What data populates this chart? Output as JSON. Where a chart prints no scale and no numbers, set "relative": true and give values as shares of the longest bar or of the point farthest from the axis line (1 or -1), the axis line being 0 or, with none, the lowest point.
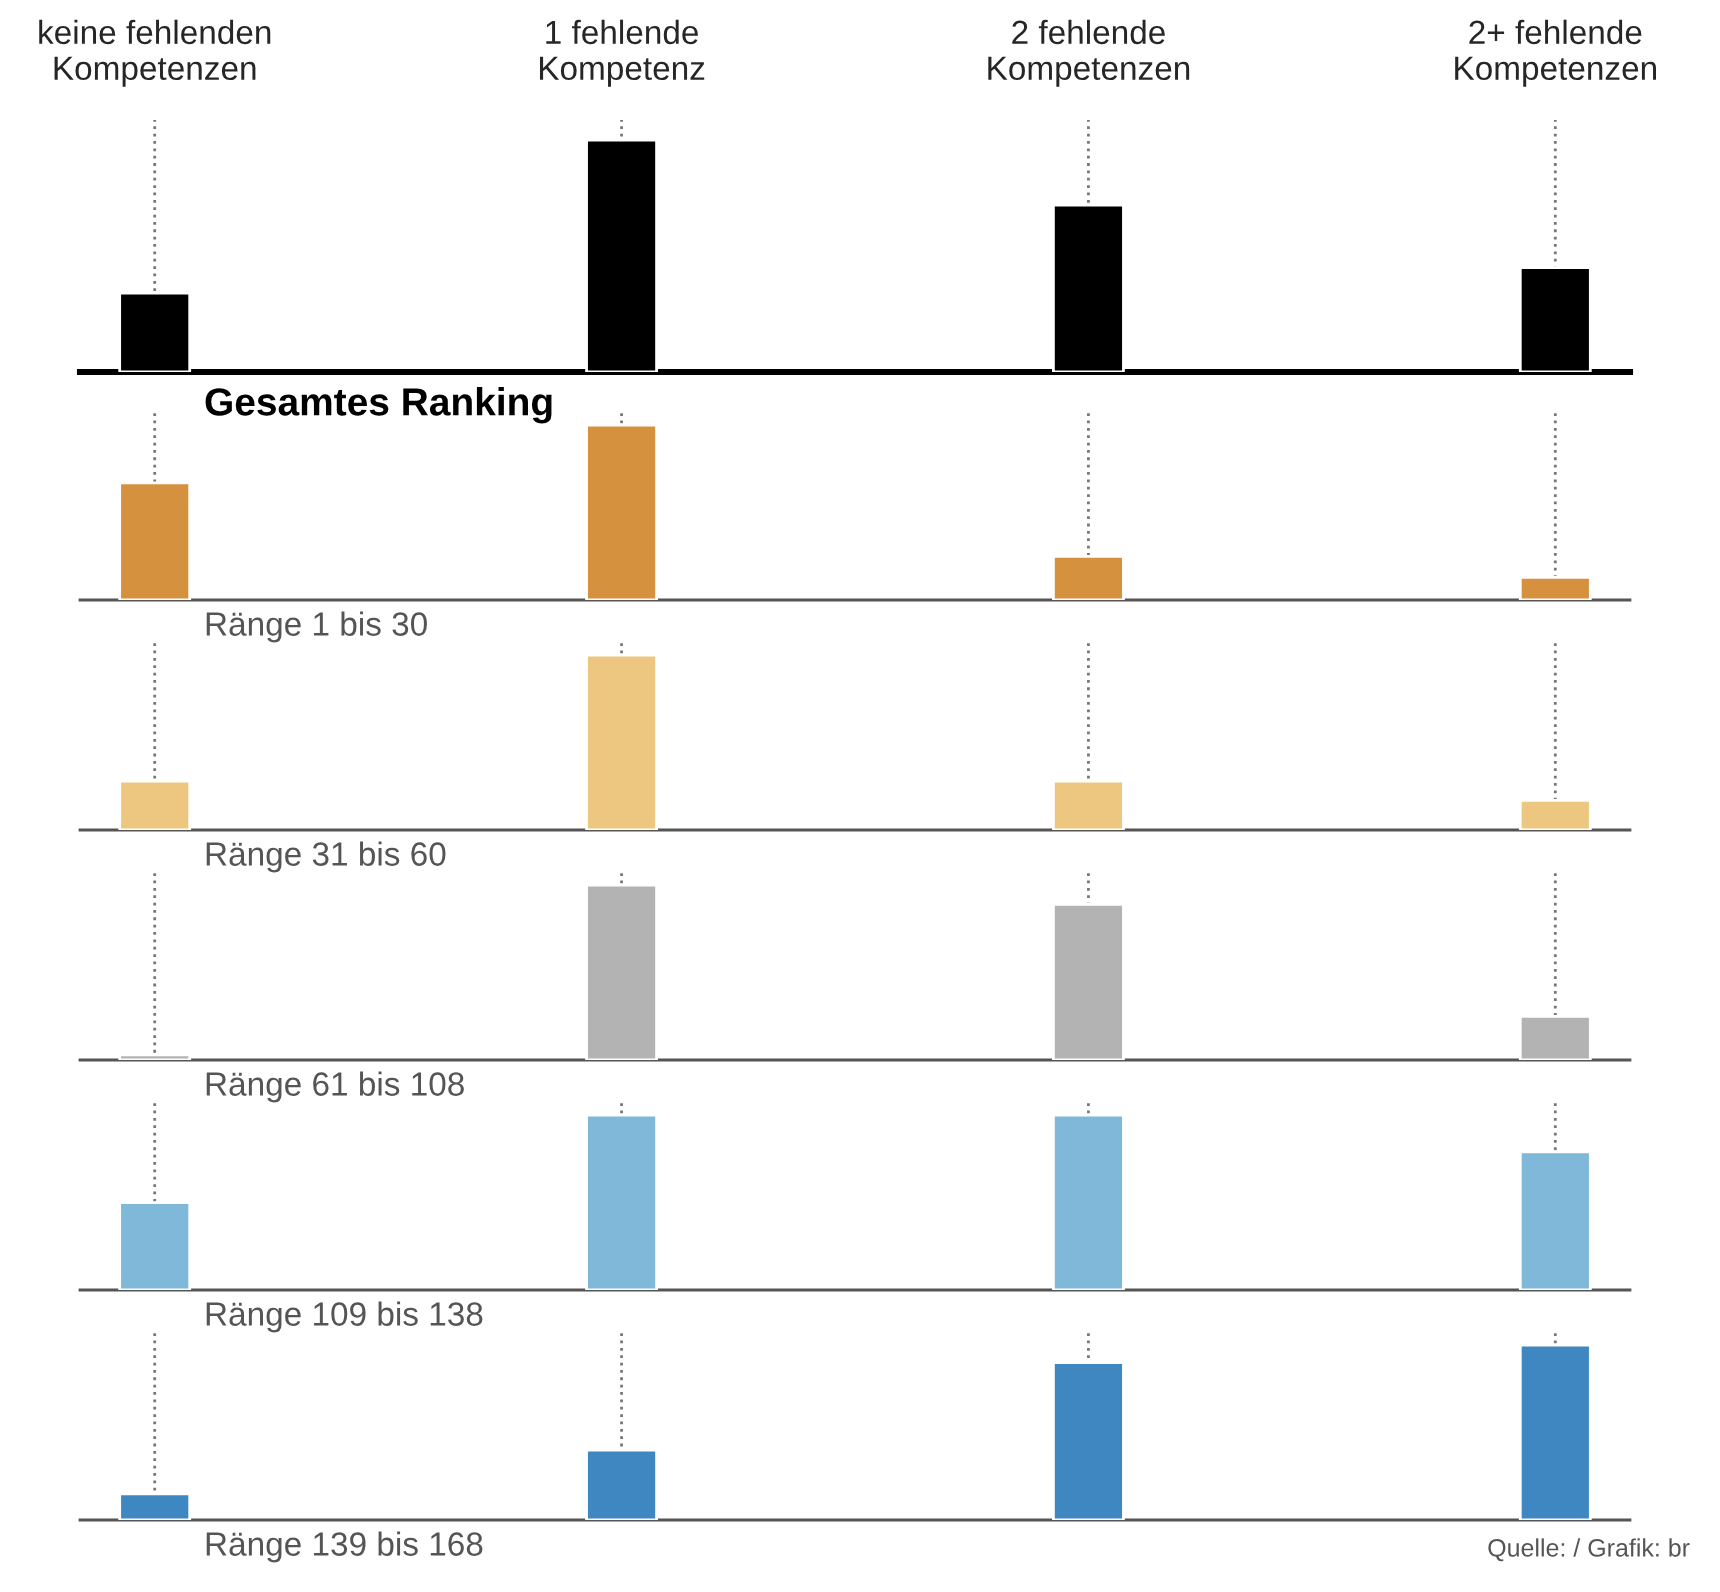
{
  "chart_data": [
    {
      "type": "bar",
      "title": "Gesamtes Ranking",
      "categories": [
        "keine fehlenden\nKompetenzen",
        "1 fehlende\nKompetenz",
        "2 fehlende\nKompetenzen",
        "2+ fehlende\nKompetenzen"
      ],
      "relative": true,
      "values": [
        0.34,
        1,
        0.72,
        0.45
      ],
      "color": "#000000",
      "grid": "x"
    },
    {
      "type": "bar",
      "title": "Ränge 1 bis 30",
      "categories": [
        null,
        null,
        null,
        null
      ],
      "relative": true,
      "values": [
        0.67,
        1,
        0.25,
        0.13
      ],
      "color": "#d6913f",
      "grid": "x"
    },
    {
      "type": "bar",
      "title": "Ränge 31 bis 60",
      "categories": [
        null,
        null,
        null,
        null
      ],
      "relative": true,
      "values": [
        0.28,
        1,
        0.28,
        0.17
      ],
      "color": "#edc77f",
      "grid": "x"
    },
    {
      "type": "bar",
      "title": "Ränge 61 bis 108",
      "categories": [
        null,
        null,
        null,
        null
      ],
      "relative": true,
      "values": [
        0.03,
        1,
        0.89,
        0.25
      ],
      "color": "#b3b3b3",
      "grid": "x"
    },
    {
      "type": "bar",
      "title": "Ränge 109 bis 138",
      "categories": [
        null,
        null,
        null,
        null
      ],
      "relative": true,
      "values": [
        0.5,
        1,
        1,
        0.79
      ],
      "color": "#7fb8d9",
      "grid": "x"
    },
    {
      "type": "bar",
      "title": "Ränge 139 bis 168",
      "categories": [
        null,
        null,
        null,
        null
      ],
      "relative": true,
      "values": [
        0.15,
        0.4,
        0.9,
        1
      ],
      "color": "#3e87c0",
      "grid": "x",
      "annotations": [
        "Quelle: / Grafik: br"
      ]
    }
  ]
}
